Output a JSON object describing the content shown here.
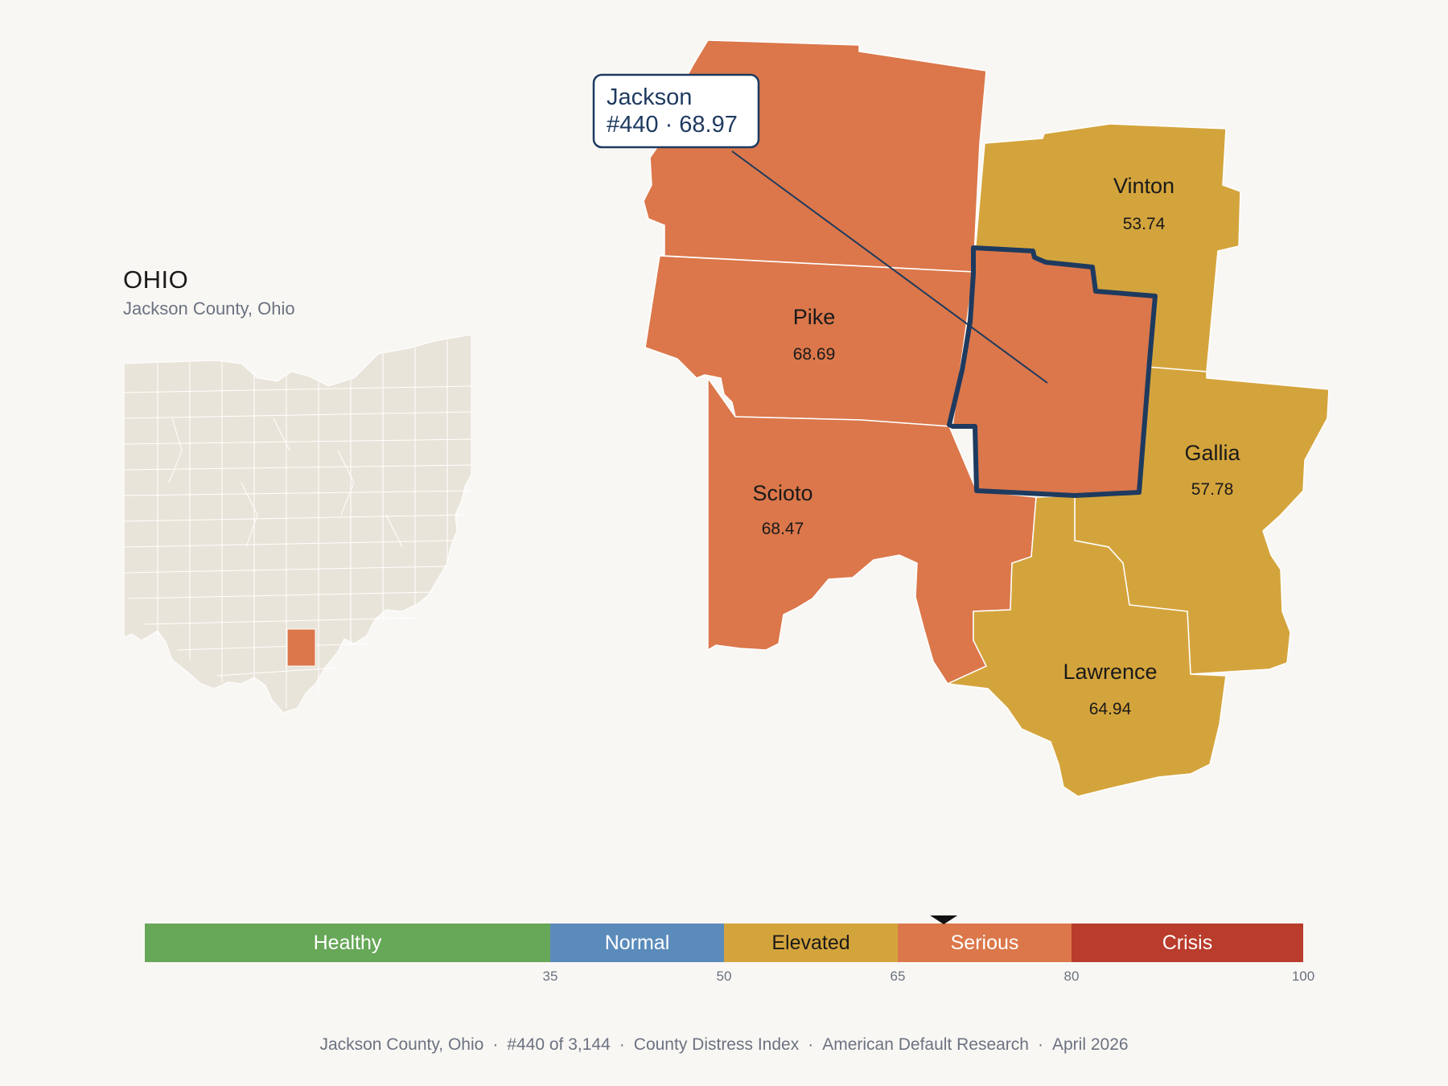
{
  "state": {
    "title": "OHIO",
    "subtitle": "Jackson County, Ohio"
  },
  "focus_county": {
    "name": "Jackson",
    "rank_score": "#440 · 68.97",
    "score": 68.97,
    "category": "Serious"
  },
  "neighbors": [
    {
      "id": "ross",
      "name": "",
      "score": null,
      "category": "Serious"
    },
    {
      "id": "vinton",
      "name": "Vinton",
      "score": "53.74",
      "category": "Elevated"
    },
    {
      "id": "pike",
      "name": "Pike",
      "score": "68.69",
      "category": "Serious"
    },
    {
      "id": "gallia",
      "name": "Gallia",
      "score": "57.78",
      "category": "Elevated"
    },
    {
      "id": "scioto",
      "name": "Scioto",
      "score": "68.47",
      "category": "Serious"
    },
    {
      "id": "lawrence",
      "name": "Lawrence",
      "score": "64.94",
      "category": "Elevated"
    }
  ],
  "legend": {
    "min": 0,
    "max": 100,
    "marker_value": 68.97,
    "segments": [
      {
        "label": "Healthy",
        "from": 0,
        "to": 35,
        "color": "#67a758",
        "text_color": "#ffffff"
      },
      {
        "label": "Normal",
        "from": 35,
        "to": 50,
        "color": "#5b8bbb",
        "text_color": "#ffffff"
      },
      {
        "label": "Elevated",
        "from": 50,
        "to": 65,
        "color": "#d4a43c",
        "text_color": "#1a1a1a"
      },
      {
        "label": "Serious",
        "from": 65,
        "to": 80,
        "color": "#db774a",
        "text_color": "#ffffff"
      },
      {
        "label": "Crisis",
        "from": 80,
        "to": 100,
        "color": "#b93c2c",
        "text_color": "#ffffff"
      }
    ],
    "ticks": [
      "35",
      "50",
      "65",
      "80",
      "100"
    ]
  },
  "colors": {
    "serious": "#db774a",
    "elevated": "#d4a43c",
    "inset_fill": "#e9e4d9",
    "highlight_outline": "#1e3a5f",
    "background": "#f9f7f4"
  },
  "footer": {
    "parts": [
      "Jackson County, Ohio",
      "#440 of 3,144",
      "County Distress Index",
      "American Default Research",
      "April 2026"
    ]
  }
}
